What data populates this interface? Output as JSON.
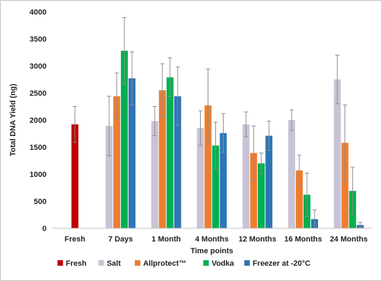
{
  "chart_data": {
    "type": "bar",
    "title": "",
    "xlabel": "Time points",
    "ylabel": "Total DNA Yield (ng)",
    "ylim": [
      0,
      4000
    ],
    "yticks": [
      0,
      500,
      1000,
      1500,
      2000,
      2500,
      3000,
      3500,
      4000
    ],
    "grid": false,
    "legend_position": "bottom",
    "categories": [
      "Fresh",
      "7 Days",
      "1 Month",
      "4 Months",
      "12 Months",
      "16 Months",
      "24 Months"
    ],
    "series": [
      {
        "name": "Fresh",
        "color": "#c00000",
        "values": [
          1920,
          null,
          null,
          null,
          null,
          null,
          null
        ],
        "errors": [
          330,
          null,
          null,
          null,
          null,
          null,
          null
        ]
      },
      {
        "name": "Salt",
        "color": "#c9c3d6",
        "values": [
          null,
          1890,
          1980,
          1850,
          1920,
          2000,
          2750
        ],
        "errors": [
          null,
          550,
          270,
          320,
          230,
          190,
          450
        ]
      },
      {
        "name": "Allprotect™",
        "color": "#ed7d31",
        "values": [
          null,
          2440,
          2550,
          2270,
          1390,
          1070,
          1580
        ],
        "errors": [
          null,
          430,
          490,
          670,
          500,
          280,
          700
        ]
      },
      {
        "name": "Vodka",
        "color": "#00b050",
        "values": [
          null,
          3280,
          2790,
          1530,
          1200,
          620,
          690
        ],
        "errors": [
          null,
          610,
          360,
          430,
          190,
          400,
          440
        ]
      },
      {
        "name": "Freezer at -20°C",
        "color": "#2e75b6",
        "values": [
          null,
          2770,
          2440,
          1760,
          1710,
          170,
          60
        ],
        "errors": [
          null,
          490,
          540,
          360,
          270,
          170,
          50
        ]
      }
    ]
  }
}
